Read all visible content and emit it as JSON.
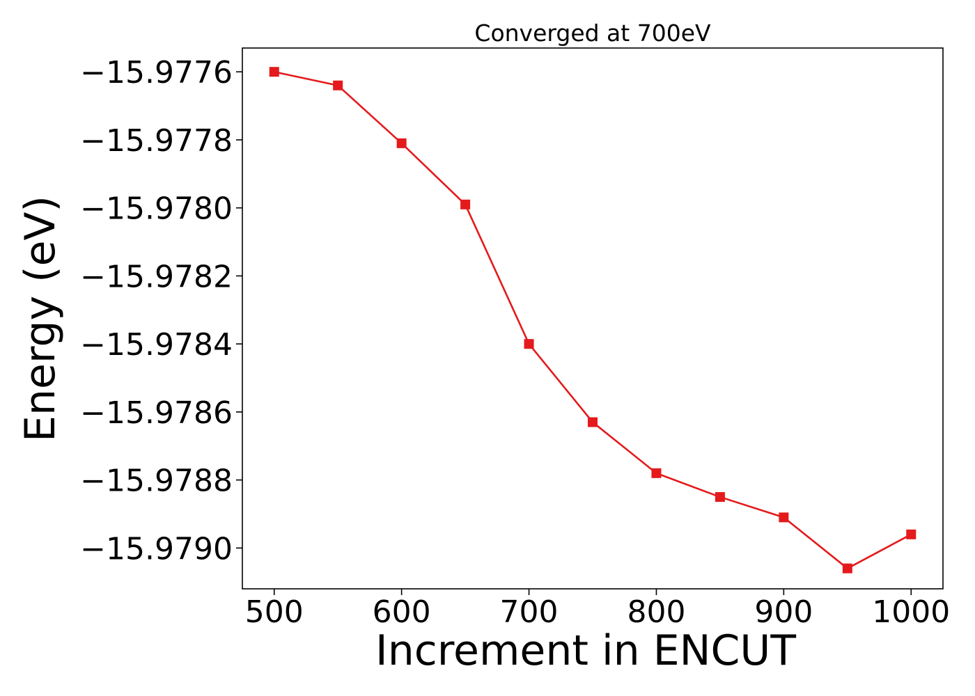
{
  "chart_data": {
    "type": "line",
    "title": "Converged at 700eV",
    "xlabel": "Increment in ENCUT",
    "ylabel": "Energy (eV)",
    "xlim": [
      475,
      1025
    ],
    "ylim": [
      -15.97912,
      -15.97753
    ],
    "xticks": [
      500,
      600,
      700,
      800,
      900,
      1000
    ],
    "xtick_labels": [
      "500",
      "600",
      "700",
      "800",
      "900",
      "1000"
    ],
    "yticks": [
      -15.9776,
      -15.9778,
      -15.978,
      -15.9782,
      -15.9784,
      -15.9786,
      -15.9788,
      -15.979
    ],
    "ytick_labels": [
      "−15.9776",
      "−15.9778",
      "−15.9780",
      "−15.9782",
      "−15.9784",
      "−15.9786",
      "−15.9788",
      "−15.9790"
    ],
    "grid": false,
    "series": [
      {
        "color": "#e41a1c",
        "marker": "square",
        "x": [
          500,
          550,
          600,
          650,
          700,
          750,
          800,
          850,
          900,
          950,
          1000
        ],
        "y": [
          -15.9776,
          -15.97764,
          -15.97781,
          -15.97799,
          -15.9784,
          -15.97863,
          -15.97878,
          -15.97885,
          -15.97891,
          -15.97906,
          -15.97896
        ]
      }
    ]
  }
}
